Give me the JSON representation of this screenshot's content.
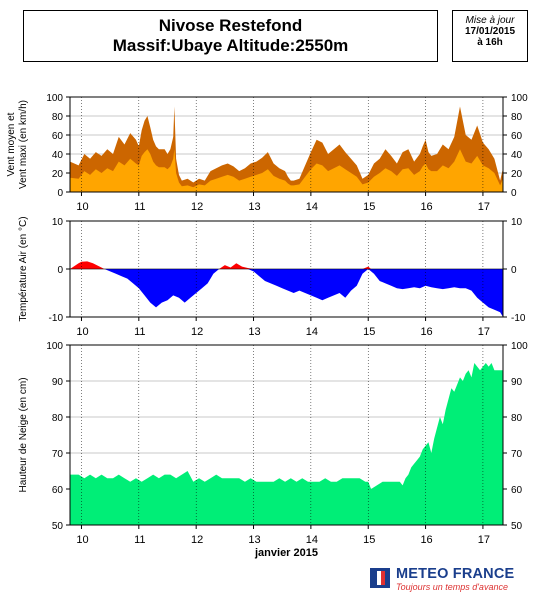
{
  "header": {
    "title_line1": "Nivose Restefond",
    "title_line2": "Massif:Ubaye Altitude:2550m"
  },
  "update": {
    "label": "Mise à jour",
    "date": "17/01/2015",
    "time": "à 16h"
  },
  "logo": {
    "name": "METEO FRANCE",
    "tagline": "Toujours un temps d'avance"
  },
  "chart_data": [
    {
      "type": "area",
      "ylabel": "Vent moyen et Vent maxi (en km/h)",
      "ylim": [
        0,
        100
      ],
      "yticks": [
        0,
        20,
        40,
        60,
        80,
        100
      ],
      "xlim": [
        9.8,
        17.35
      ],
      "xticks": [
        10,
        11,
        12,
        13,
        14,
        15,
        16,
        17
      ],
      "grid": true,
      "series": [
        {
          "role": "max",
          "color": "#cc6600",
          "x": [
            9.8,
            9.95,
            10.05,
            10.15,
            10.25,
            10.35,
            10.45,
            10.55,
            10.65,
            10.75,
            10.85,
            10.95,
            11.0,
            11.05,
            11.1,
            11.15,
            11.2,
            11.25,
            11.3,
            11.35,
            11.45,
            11.5,
            11.55,
            11.6,
            11.62,
            11.65,
            11.7,
            11.75,
            11.85,
            11.95,
            12.05,
            12.15,
            12.25,
            12.35,
            12.45,
            12.55,
            12.65,
            12.75,
            12.85,
            12.95,
            13.05,
            13.15,
            13.25,
            13.35,
            13.45,
            13.55,
            13.6,
            13.65,
            13.7,
            13.8,
            13.9,
            14.0,
            14.1,
            14.2,
            14.3,
            14.4,
            14.5,
            14.6,
            14.7,
            14.8,
            14.9,
            15.0,
            15.1,
            15.2,
            15.3,
            15.4,
            15.5,
            15.6,
            15.7,
            15.8,
            15.9,
            15.95,
            16.0,
            16.05,
            16.1,
            16.2,
            16.3,
            16.4,
            16.5,
            16.6,
            16.7,
            16.8,
            16.9,
            17.0,
            17.1,
            17.2,
            17.3,
            17.35
          ],
          "values": [
            32,
            28,
            40,
            35,
            42,
            38,
            45,
            40,
            58,
            50,
            62,
            55,
            48,
            65,
            75,
            80,
            68,
            55,
            48,
            45,
            45,
            40,
            45,
            58,
            90,
            35,
            18,
            12,
            14,
            10,
            14,
            12,
            22,
            25,
            28,
            30,
            27,
            22,
            25,
            30,
            32,
            36,
            42,
            30,
            25,
            22,
            16,
            12,
            12,
            14,
            28,
            42,
            55,
            52,
            40,
            45,
            50,
            42,
            35,
            28,
            14,
            18,
            30,
            35,
            45,
            38,
            30,
            42,
            45,
            32,
            40,
            48,
            55,
            42,
            38,
            40,
            50,
            45,
            58,
            90,
            60,
            55,
            70,
            52,
            45,
            35,
            12,
            25
          ],
          "label": "Vent maxi"
        },
        {
          "role": "mean",
          "color": "#ffa500",
          "x": [
            9.8,
            9.95,
            10.05,
            10.15,
            10.25,
            10.35,
            10.45,
            10.55,
            10.65,
            10.75,
            10.85,
            10.95,
            11.0,
            11.05,
            11.1,
            11.15,
            11.2,
            11.25,
            11.3,
            11.35,
            11.45,
            11.5,
            11.55,
            11.6,
            11.62,
            11.65,
            11.7,
            11.75,
            11.85,
            11.95,
            12.05,
            12.15,
            12.25,
            12.35,
            12.45,
            12.55,
            12.65,
            12.75,
            12.85,
            12.95,
            13.05,
            13.15,
            13.25,
            13.35,
            13.45,
            13.55,
            13.6,
            13.65,
            13.7,
            13.8,
            13.9,
            14.0,
            14.1,
            14.2,
            14.3,
            14.4,
            14.5,
            14.6,
            14.7,
            14.8,
            14.9,
            15.0,
            15.1,
            15.2,
            15.3,
            15.4,
            15.5,
            15.6,
            15.7,
            15.8,
            15.9,
            15.95,
            16.0,
            16.05,
            16.1,
            16.2,
            16.3,
            16.4,
            16.5,
            16.6,
            16.7,
            16.8,
            16.9,
            17.0,
            17.1,
            17.2,
            17.3,
            17.35
          ],
          "values": [
            15,
            14,
            22,
            18,
            24,
            20,
            25,
            22,
            32,
            28,
            35,
            30,
            28,
            38,
            42,
            45,
            40,
            32,
            28,
            26,
            26,
            24,
            27,
            35,
            45,
            20,
            10,
            6,
            7,
            5,
            8,
            7,
            12,
            14,
            16,
            18,
            16,
            12,
            14,
            16,
            18,
            20,
            24,
            17,
            14,
            12,
            9,
            7,
            7,
            8,
            16,
            24,
            30,
            28,
            22,
            25,
            28,
            24,
            20,
            16,
            8,
            10,
            16,
            20,
            25,
            22,
            17,
            24,
            25,
            18,
            22,
            27,
            30,
            24,
            22,
            22,
            28,
            25,
            32,
            45,
            32,
            30,
            38,
            28,
            25,
            20,
            7,
            14
          ],
          "label": "Vent moyen"
        }
      ]
    },
    {
      "type": "area",
      "ylabel": "Température Air (en °C)",
      "ylim": [
        -10,
        10
      ],
      "yticks": [
        -10,
        0,
        10
      ],
      "xlim": [
        9.8,
        17.35
      ],
      "xticks": [
        10,
        11,
        12,
        13,
        14,
        15,
        16,
        17
      ],
      "grid": true,
      "positive_color": "#ff0000",
      "negative_color": "#0000ff",
      "series": [
        {
          "name": "Température Air",
          "x": [
            9.8,
            9.95,
            10.0,
            10.1,
            10.2,
            10.3,
            10.4,
            10.5,
            10.6,
            10.7,
            10.8,
            10.9,
            11.0,
            11.1,
            11.2,
            11.3,
            11.4,
            11.5,
            11.6,
            11.7,
            11.8,
            11.9,
            12.0,
            12.1,
            12.2,
            12.25,
            12.3,
            12.35,
            12.4,
            12.5,
            12.6,
            12.7,
            12.8,
            12.9,
            13.0,
            13.1,
            13.2,
            13.3,
            13.4,
            13.5,
            13.6,
            13.7,
            13.8,
            13.9,
            14.0,
            14.1,
            14.2,
            14.3,
            14.4,
            14.5,
            14.6,
            14.7,
            14.8,
            14.9,
            15.0,
            15.05,
            15.1,
            15.2,
            15.3,
            15.4,
            15.5,
            15.6,
            15.7,
            15.8,
            15.9,
            16.0,
            16.1,
            16.2,
            16.3,
            16.4,
            16.5,
            16.6,
            16.7,
            16.8,
            16.9,
            17.0,
            17.1,
            17.2,
            17.3,
            17.35
          ],
          "values": [
            0,
            1.2,
            1.5,
            1.6,
            1.2,
            0.6,
            0,
            -0.5,
            -1,
            -1.5,
            -2,
            -3,
            -4,
            -5.5,
            -7,
            -8,
            -7,
            -6.5,
            -5.5,
            -6,
            -7,
            -6,
            -5,
            -4,
            -3,
            -2,
            -1,
            -0.5,
            0,
            0.8,
            0.3,
            1.2,
            0.5,
            0.2,
            -0.5,
            -1.5,
            -2.5,
            -3,
            -3.5,
            -4,
            -4.5,
            -5,
            -4.5,
            -5,
            -5.5,
            -6,
            -6.5,
            -6,
            -5.5,
            -5,
            -6,
            -4.5,
            -3.5,
            -1,
            0.5,
            -0.5,
            -1,
            -2.5,
            -3,
            -3.5,
            -4,
            -4.2,
            -4,
            -3.8,
            -4,
            -3.5,
            -3.8,
            -4,
            -4.2,
            -4,
            -3.8,
            -4,
            -4,
            -4.5,
            -6,
            -7,
            -8,
            -8.5,
            -9,
            -10
          ]
        }
      ]
    },
    {
      "type": "area",
      "ylabel": "Hauteur de Neige (en cm)",
      "xlabel": "janvier 2015",
      "ylim": [
        50,
        100
      ],
      "yticks": [
        50,
        60,
        70,
        80,
        90,
        100
      ],
      "xlim": [
        9.8,
        17.35
      ],
      "xticks": [
        10,
        11,
        12,
        13,
        14,
        15,
        16,
        17
      ],
      "grid": true,
      "color": "#00ee77",
      "series": [
        {
          "name": "Hauteur de Neige",
          "x": [
            9.8,
            9.95,
            10.05,
            10.15,
            10.25,
            10.35,
            10.45,
            10.55,
            10.65,
            10.75,
            10.85,
            10.95,
            11.05,
            11.15,
            11.25,
            11.35,
            11.45,
            11.55,
            11.65,
            11.75,
            11.85,
            11.95,
            12.05,
            12.15,
            12.25,
            12.35,
            12.45,
            12.55,
            12.65,
            12.75,
            12.85,
            12.95,
            13.05,
            13.15,
            13.25,
            13.35,
            13.45,
            13.55,
            13.65,
            13.75,
            13.85,
            13.95,
            14.05,
            14.15,
            14.25,
            14.35,
            14.45,
            14.55,
            14.65,
            14.75,
            14.85,
            14.95,
            15.0,
            15.05,
            15.15,
            15.25,
            15.35,
            15.45,
            15.55,
            15.6,
            15.65,
            15.7,
            15.75,
            15.8,
            15.85,
            15.9,
            15.95,
            16.0,
            16.05,
            16.1,
            16.15,
            16.2,
            16.25,
            16.3,
            16.35,
            16.4,
            16.45,
            16.5,
            16.55,
            16.6,
            16.65,
            16.7,
            16.75,
            16.8,
            16.85,
            16.9,
            16.95,
            17.0,
            17.05,
            17.1,
            17.15,
            17.2,
            17.25,
            17.3,
            17.35
          ],
          "values": [
            64,
            64,
            63,
            64,
            63,
            64,
            63,
            63,
            64,
            63,
            62,
            63,
            62,
            63,
            64,
            63,
            64,
            64,
            63,
            64,
            65,
            62,
            63,
            62,
            63,
            64,
            63,
            63,
            63,
            63,
            62,
            63,
            62,
            62,
            62,
            62,
            63,
            62,
            63,
            62,
            63,
            62,
            62,
            62,
            63,
            62,
            62,
            63,
            63,
            63,
            63,
            62,
            62,
            60,
            61,
            62,
            62,
            62,
            62,
            61,
            63,
            64,
            66,
            67,
            68,
            69,
            71,
            72,
            73,
            70,
            74,
            77,
            80,
            78,
            82,
            85,
            88,
            87,
            89,
            91,
            90,
            92,
            93,
            91,
            95,
            94,
            93,
            94,
            95,
            94,
            95,
            93,
            93,
            93,
            93
          ]
        }
      ]
    }
  ]
}
